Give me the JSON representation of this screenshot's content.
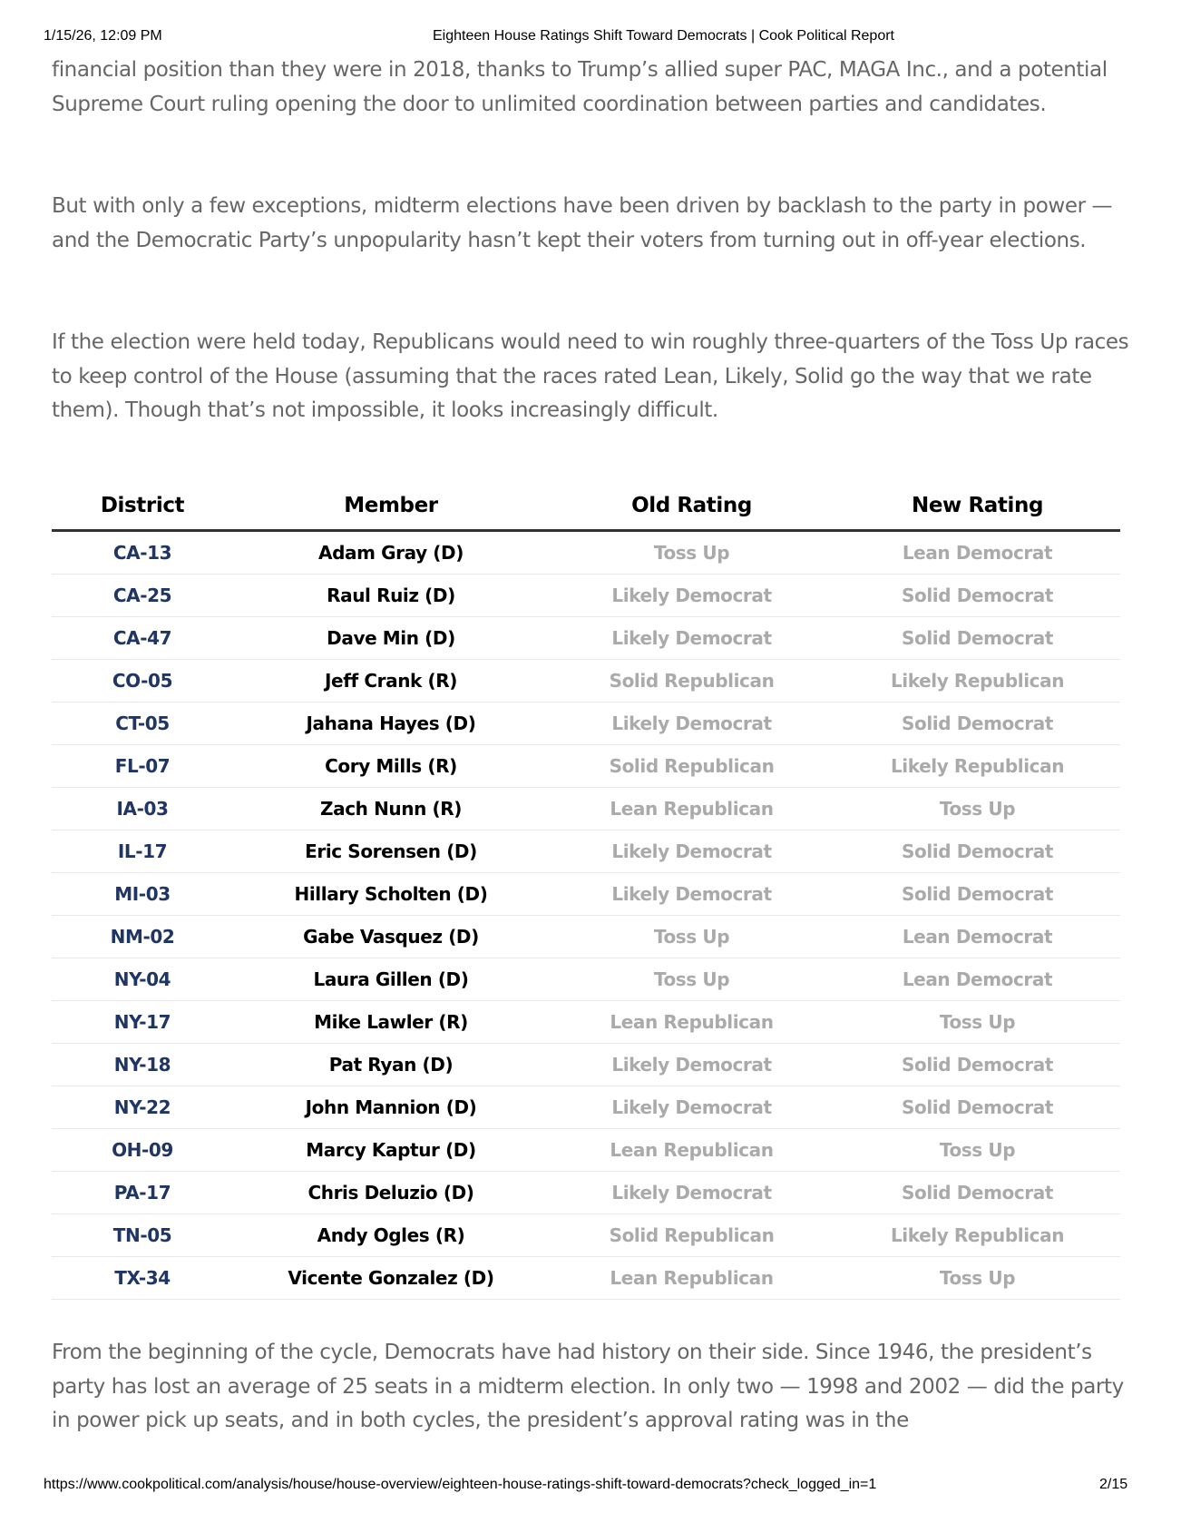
{
  "header": {
    "timestamp": "1/15/26, 12:09 PM",
    "title": "Eighteen House Ratings Shift Toward Democrats | Cook Political Report"
  },
  "paragraphs": [
    "financial position than they were in 2018, thanks to Trump’s allied super PAC, MAGA Inc., and a potential Supreme Court ruling opening the door to unlimited coordination between parties and candidates.",
    "But with only a few exceptions, midterm elections have been driven by backlash to the party in power — and the Democratic Party’s unpopularity hasn’t kept their voters from turning out in off-year elections.",
    "If the election were held today, Republicans would need to win roughly three-quarters of the Toss Up races to keep control of the House (assuming that the races rated Lean, Likely, Solid go the way that we rate them). Though that’s not impossible, it looks increasingly difficult.",
    "From the beginning of the cycle, Democrats have had history on their side. Since 1946, the president’s party has lost an average of 25 seats in a midterm election. In only two — 1998 and 2002 — did the party in power pick up seats, and in both cycles, the president’s approval rating was in the"
  ],
  "table": {
    "headers": [
      "District",
      "Member",
      "Old Rating",
      "New Rating"
    ],
    "rows": [
      [
        "CA-13",
        "Adam Gray (D)",
        "Toss Up",
        "Lean Democrat"
      ],
      [
        "CA-25",
        "Raul Ruiz (D)",
        "Likely Democrat",
        "Solid Democrat"
      ],
      [
        "CA-47",
        "Dave Min (D)",
        "Likely Democrat",
        "Solid Democrat"
      ],
      [
        "CO-05",
        "Jeff Crank (R)",
        "Solid Republican",
        "Likely Republican"
      ],
      [
        "CT-05",
        "Jahana Hayes (D)",
        "Likely Democrat",
        "Solid Democrat"
      ],
      [
        "FL-07",
        "Cory Mills (R)",
        "Solid Republican",
        "Likely Republican"
      ],
      [
        "IA-03",
        "Zach Nunn (R)",
        "Lean Republican",
        "Toss Up"
      ],
      [
        "IL-17",
        "Eric Sorensen (D)",
        "Likely Democrat",
        "Solid Democrat"
      ],
      [
        "MI-03",
        "Hillary Scholten (D)",
        "Likely Democrat",
        "Solid Democrat"
      ],
      [
        "NM-02",
        "Gabe Vasquez (D)",
        "Toss Up",
        "Lean Democrat"
      ],
      [
        "NY-04",
        "Laura Gillen (D)",
        "Toss Up",
        "Lean Democrat"
      ],
      [
        "NY-17",
        "Mike Lawler (R)",
        "Lean Republican",
        "Toss Up"
      ],
      [
        "NY-18",
        "Pat Ryan (D)",
        "Likely Democrat",
        "Solid Democrat"
      ],
      [
        "NY-22",
        "John Mannion (D)",
        "Likely Democrat",
        "Solid Democrat"
      ],
      [
        "OH-09",
        "Marcy Kaptur (D)",
        "Lean Republican",
        "Toss Up"
      ],
      [
        "PA-17",
        "Chris Deluzio (D)",
        "Likely Democrat",
        "Solid Democrat"
      ],
      [
        "TN-05",
        "Andy Ogles (R)",
        "Solid Republican",
        "Likely Republican"
      ],
      [
        "TX-34",
        "Vicente Gonzalez (D)",
        "Lean Republican",
        "Toss Up"
      ]
    ]
  },
  "footer": {
    "url": "https://www.cookpolitical.com/analysis/house/house-overview/eighteen-house-ratings-shift-toward-democrats?check_logged_in=1",
    "page": "2/15"
  },
  "colors": {
    "district_link": "#1f3563",
    "rating_text": "#aaaaaa",
    "body_text": "#666666"
  }
}
